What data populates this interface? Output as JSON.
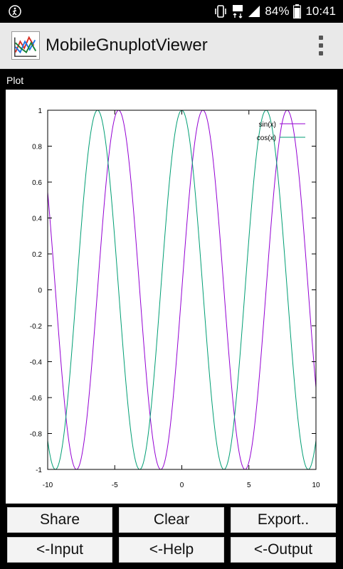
{
  "status_bar": {
    "battery_percent": "84%",
    "time": "10:41",
    "icons": [
      "accessibility-icon",
      "vibrate-icon",
      "mobile-data-icon",
      "signal-icon",
      "battery-icon"
    ]
  },
  "app_bar": {
    "title": "MobileGnuplotViewer",
    "menu_icon": "overflow-menu-icon"
  },
  "plot_panel": {
    "label": "Plot"
  },
  "chart_data": {
    "type": "line",
    "xlim": [
      -10,
      10
    ],
    "ylim": [
      -1,
      1
    ],
    "x_ticks": [
      "-10",
      "-5",
      "0",
      "5",
      "10"
    ],
    "y_ticks": [
      "1",
      "0.8",
      "0.6",
      "0.4",
      "0.2",
      "0",
      "-0.2",
      "-0.4",
      "-0.6",
      "-0.8",
      "-1"
    ],
    "grid": false,
    "legend_position": "top-right",
    "series": [
      {
        "name": "sin(x)",
        "function": "sin",
        "color": "#9400d3",
        "x_range": [
          -10,
          10
        ]
      },
      {
        "name": "cos(x)",
        "function": "cos",
        "color": "#009e73",
        "x_range": [
          -10,
          10
        ]
      }
    ]
  },
  "buttons": {
    "share": "Share",
    "clear": "Clear",
    "export": "Export..",
    "input": "<-Input",
    "help": "<-Help",
    "output": "<-Output"
  }
}
